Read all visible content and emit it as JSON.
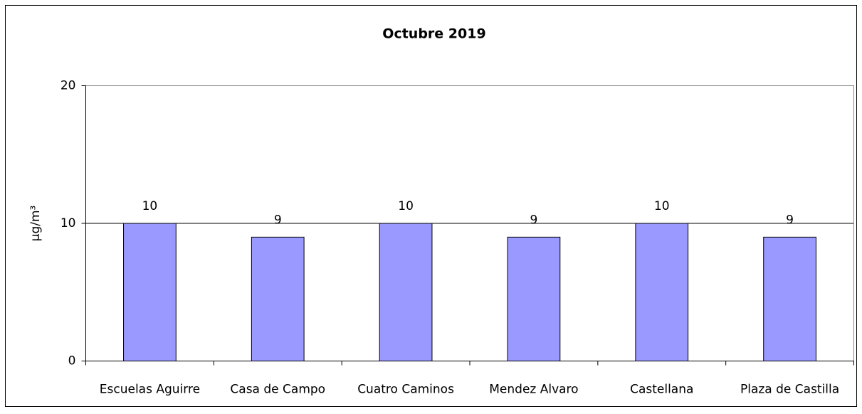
{
  "chart_data": {
    "type": "bar",
    "title": "Octubre 2019",
    "y_label": "µg/m³",
    "categories": [
      "Escuelas Aguirre",
      "Casa de Campo",
      "Cuatro Caminos",
      "Mendez Alvaro",
      "Castellana",
      "Plaza de Castilla"
    ],
    "values": [
      10,
      9,
      10,
      9,
      10,
      9
    ],
    "color": "#9999ff",
    "ylim": [
      0,
      20
    ],
    "yticks": [
      0,
      10,
      20
    ],
    "grid": true
  }
}
